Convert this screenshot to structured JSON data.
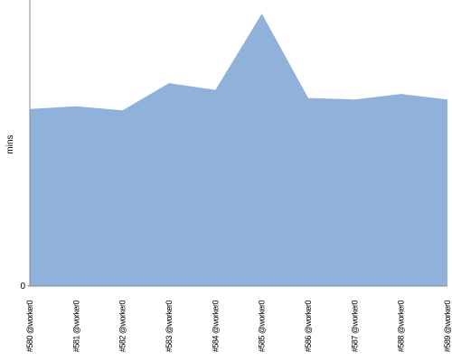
{
  "chart_data": {
    "type": "area",
    "y_label": "mins",
    "categories": [
      "#580 @worker0",
      "#581 @worker0",
      "#582 @worker0",
      "#583 @worker0",
      "#584 @worker0",
      "#585 @worker0",
      "#586 @worker0",
      "#587 @worker0",
      "#588 @worker0",
      "#589 @worker0"
    ],
    "values": [
      13.0,
      13.2,
      12.9,
      14.9,
      14.4,
      20.0,
      13.8,
      13.7,
      14.1,
      13.7
    ],
    "color": "#8fb1da",
    "ylim": [
      0,
      21
    ],
    "yticks": [
      0
    ]
  }
}
